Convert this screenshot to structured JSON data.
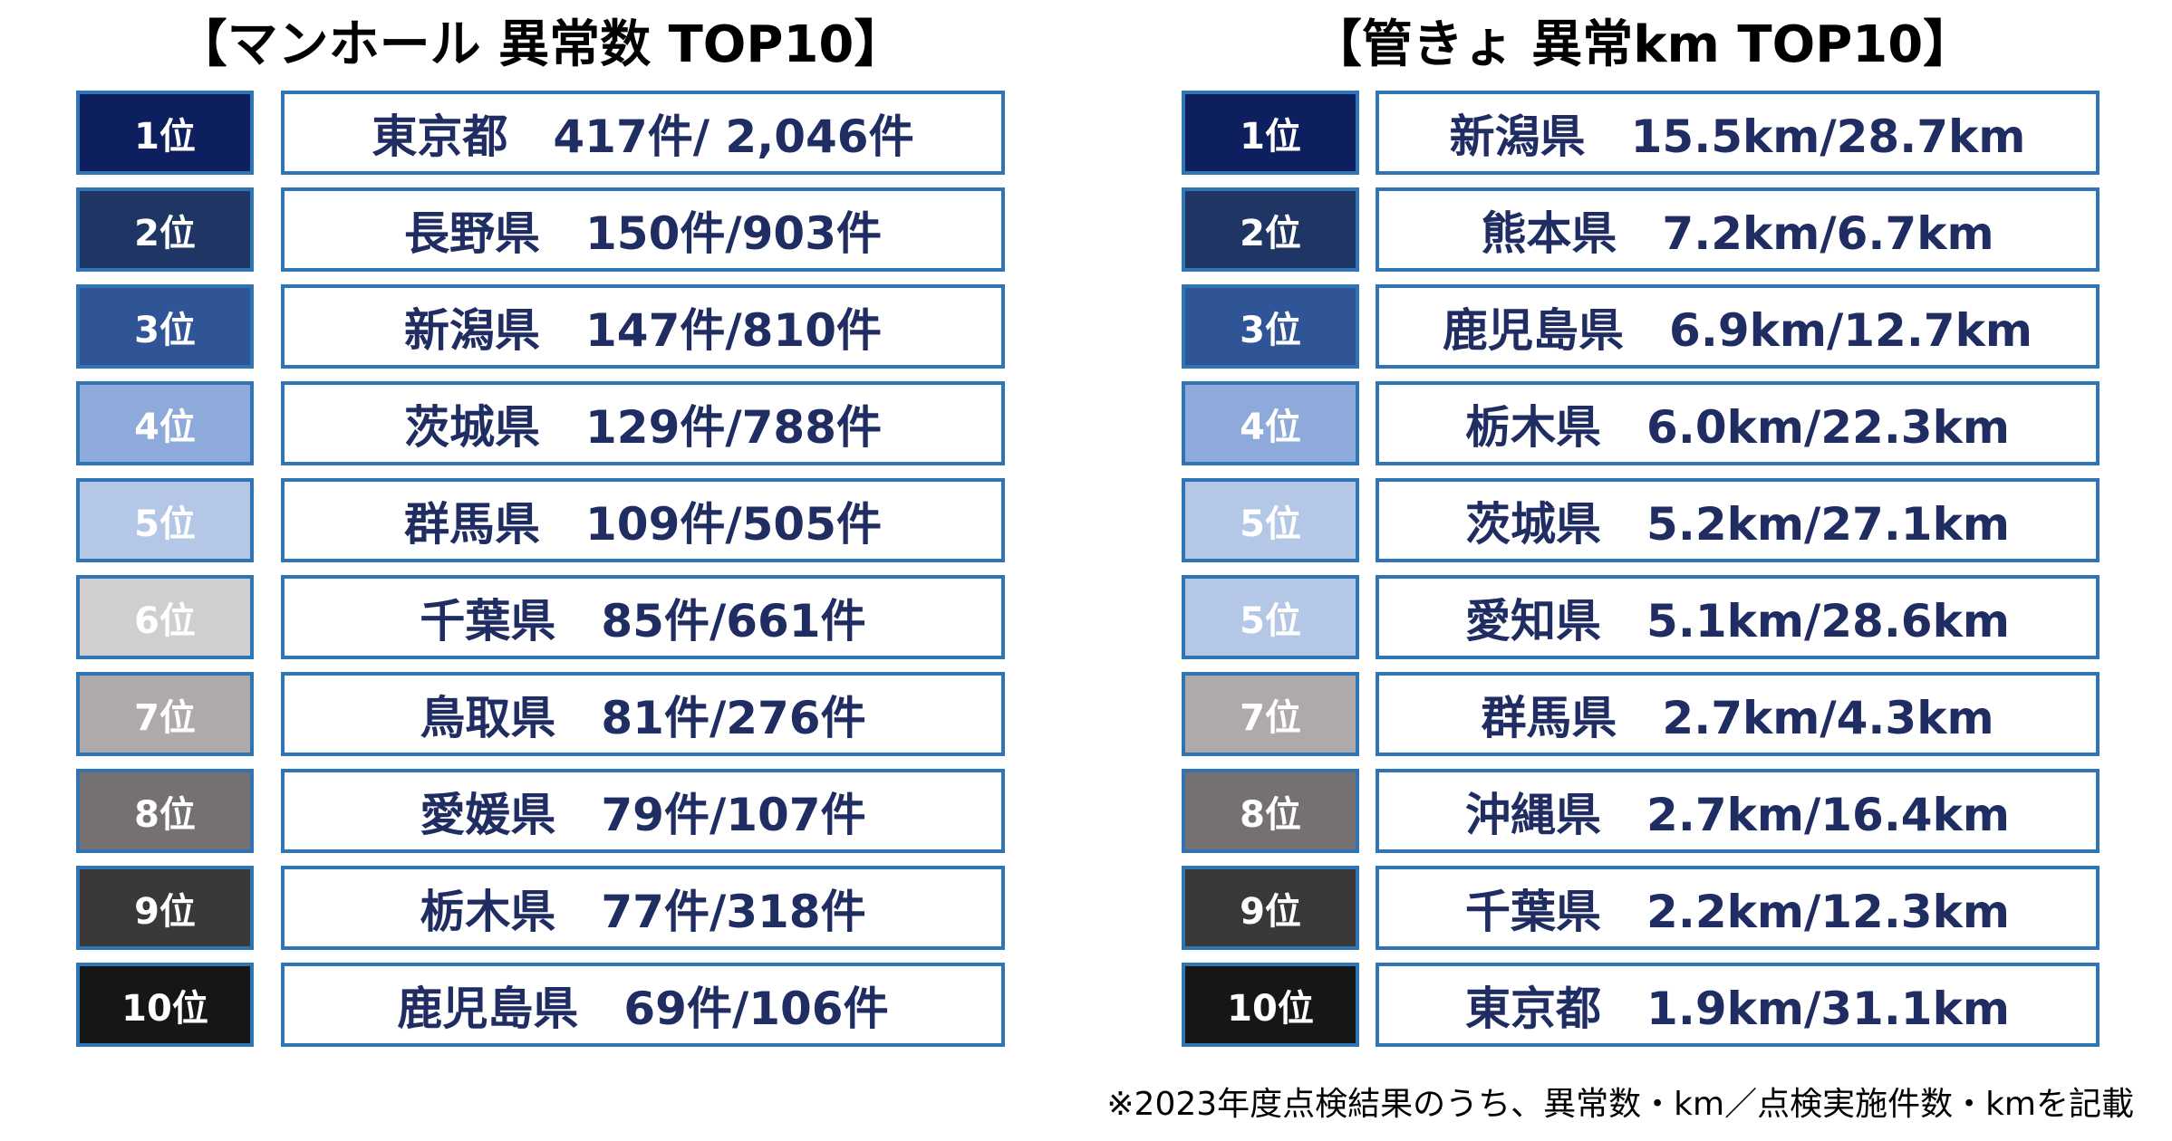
{
  "manhole": {
    "title": "【マンホール 異常数 TOP10】",
    "rows": [
      {
        "rank": "1位",
        "value": "東京都　417件/ 2,046件",
        "rank_color": "#0d1f5e"
      },
      {
        "rank": "2位",
        "value": "長野県　150件/903件",
        "rank_color": "#1f3563"
      },
      {
        "rank": "3位",
        "value": "新潟県　147件/810件",
        "rank_color": "#2f5597"
      },
      {
        "rank": "4位",
        "value": "茨城県　129件/788件",
        "rank_color": "#8eaadb"
      },
      {
        "rank": "5位",
        "value": "群馬県　109件/505件",
        "rank_color": "#b4c7e7"
      },
      {
        "rank": "6位",
        "value": "千葉県　85件/661件",
        "rank_color": "#d0cece"
      },
      {
        "rank": "7位",
        "value": "鳥取県　81件/276件",
        "rank_color": "#aeaaaa"
      },
      {
        "rank": "8位",
        "value": "愛媛県　79件/107件",
        "rank_color": "#757171"
      },
      {
        "rank": "9位",
        "value": "栃木県　77件/318件",
        "rank_color": "#3b3838"
      },
      {
        "rank": "10位",
        "value": "鹿児島県　69件/106件",
        "rank_color": "#161616"
      }
    ]
  },
  "pipe": {
    "title": "【管きょ 異常km TOP10】",
    "rows": [
      {
        "rank": "1位",
        "value": "新潟県　15.5km/28.7km",
        "rank_color": "#0d1f5e"
      },
      {
        "rank": "2位",
        "value": "熊本県　7.2km/6.7km",
        "rank_color": "#1f3563"
      },
      {
        "rank": "3位",
        "value": "鹿児島県　6.9km/12.7km",
        "rank_color": "#2f5597"
      },
      {
        "rank": "4位",
        "value": "栃木県　6.0km/22.3km",
        "rank_color": "#8eaadb"
      },
      {
        "rank": "5位",
        "value": "茨城県　5.2km/27.1km",
        "rank_color": "#b4c7e7"
      },
      {
        "rank": "5位",
        "value": "愛知県　5.1km/28.6km",
        "rank_color": "#b4c7e7"
      },
      {
        "rank": "7位",
        "value": "群馬県　2.7km/4.3km",
        "rank_color": "#aeaaaa"
      },
      {
        "rank": "8位",
        "value": "沖縄県　2.7km/16.4km",
        "rank_color": "#757171"
      },
      {
        "rank": "9位",
        "value": "千葉県　2.2km/12.3km",
        "rank_color": "#3b3838"
      },
      {
        "rank": "10位",
        "value": "東京都　1.9km/31.1km",
        "rank_color": "#161616"
      }
    ]
  },
  "footnote": "※2023年度点検結果のうち、異常数・km／点検実施件数・kmを記載"
}
